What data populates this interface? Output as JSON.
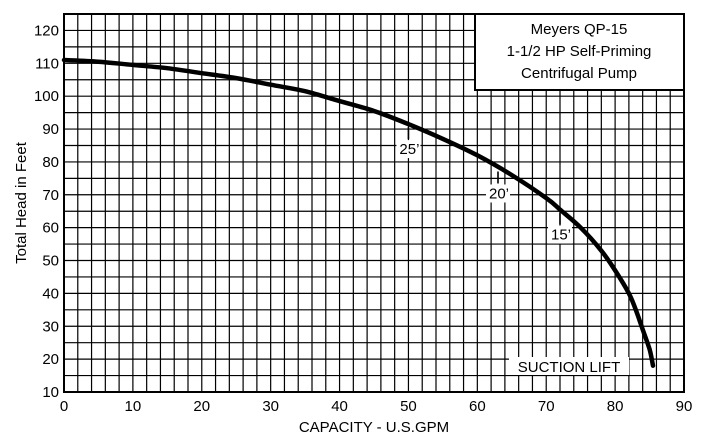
{
  "chart_data": {
    "type": "line",
    "title_lines": [
      "Meyers QP-15",
      "1-1/2 HP Self-Priming",
      "Centrifugal Pump"
    ],
    "xlabel": "CAPACITY - U.S.GPM",
    "ylabel": "Total Head in Feet",
    "xlim": [
      0,
      90
    ],
    "ylim": [
      10,
      125
    ],
    "x_ticks": [
      0,
      10,
      20,
      30,
      40,
      50,
      60,
      70,
      80,
      90
    ],
    "y_ticks": [
      10,
      20,
      30,
      40,
      50,
      60,
      70,
      80,
      90,
      100,
      110,
      120
    ],
    "grid": true,
    "x_grid_step": 2,
    "y_grid_step": 5,
    "series": [
      {
        "x": [
          0,
          5,
          10,
          15,
          20,
          25,
          30,
          35,
          40,
          45,
          50,
          55,
          60,
          65,
          70,
          72,
          75,
          78,
          80,
          82,
          83,
          84,
          85,
          85.5
        ],
        "y": [
          111,
          110.5,
          109.5,
          108.5,
          107,
          105.5,
          103.5,
          101.5,
          98.5,
          95.5,
          91.5,
          87,
          82,
          76,
          69,
          65.5,
          60,
          53,
          47,
          40,
          35,
          29,
          23,
          18
        ]
      }
    ],
    "annotations": [
      {
        "text": "25’",
        "x": 50,
        "y": 91.5
      },
      {
        "text": "20’",
        "x": 63,
        "y": 78
      },
      {
        "text": "15’",
        "x": 72,
        "y": 65.5
      }
    ],
    "footer_label": "SUCTION LIFT"
  }
}
